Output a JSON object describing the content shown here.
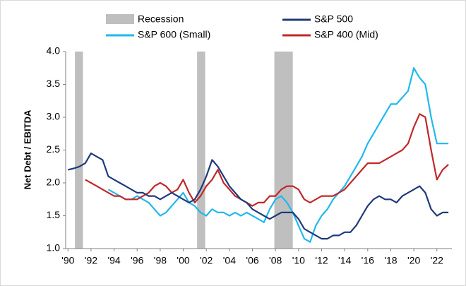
{
  "chart_data": {
    "type": "line",
    "y_label": "Net Debt / EBITDA",
    "recession": {
      "name": "Recession",
      "color": "#bfbfbf",
      "spans": [
        [
          1990.6,
          1991.3
        ],
        [
          2001.2,
          2001.9
        ],
        [
          2007.9,
          2009.5
        ]
      ]
    },
    "x": [
      1990,
      1990.5,
      1991,
      1991.5,
      1992,
      1992.5,
      1993,
      1993.5,
      1994,
      1994.5,
      1995,
      1995.5,
      1996,
      1996.5,
      1997,
      1997.5,
      1998,
      1998.5,
      1999,
      1999.5,
      2000,
      2000.5,
      2001,
      2001.5,
      2002,
      2002.5,
      2003,
      2003.5,
      2004,
      2004.5,
      2005,
      2005.5,
      2006,
      2006.5,
      2007,
      2007.5,
      2008,
      2008.5,
      2009,
      2009.5,
      2010,
      2010.5,
      2011,
      2011.5,
      2012,
      2012.5,
      2013,
      2013.5,
      2014,
      2014.5,
      2015,
      2015.5,
      2016,
      2016.5,
      2017,
      2017.5,
      2018,
      2018.5,
      2019,
      2019.5,
      2020,
      2020.5,
      2021,
      2021.5,
      2022,
      2022.5,
      2023
    ],
    "series": [
      {
        "name": "S&P 500",
        "color": "#1f3a7a",
        "values": [
          2.2,
          2.22,
          2.25,
          2.3,
          2.45,
          2.4,
          2.35,
          2.1,
          2.05,
          2.0,
          1.95,
          1.9,
          1.85,
          1.85,
          1.8,
          1.8,
          1.75,
          1.8,
          1.85,
          1.8,
          1.75,
          1.7,
          1.75,
          1.9,
          2.1,
          2.35,
          2.25,
          2.1,
          1.95,
          1.85,
          1.75,
          1.7,
          1.6,
          1.55,
          1.5,
          1.45,
          1.5,
          1.55,
          1.55,
          1.55,
          1.45,
          1.3,
          1.25,
          1.2,
          1.15,
          1.15,
          1.2,
          1.2,
          1.25,
          1.25,
          1.35,
          1.5,
          1.65,
          1.75,
          1.8,
          1.75,
          1.75,
          1.7,
          1.8,
          1.85,
          1.9,
          1.95,
          1.85,
          1.6,
          1.5,
          1.55,
          1.55
        ]
      },
      {
        "name": "S&P 600 (Small)",
        "color": "#22b8ec",
        "values": [
          null,
          null,
          null,
          null,
          null,
          null,
          null,
          1.9,
          1.85,
          1.8,
          1.75,
          1.75,
          1.8,
          1.75,
          1.7,
          1.6,
          1.5,
          1.55,
          1.65,
          1.75,
          1.85,
          1.7,
          1.65,
          1.55,
          1.5,
          1.6,
          1.55,
          1.55,
          1.5,
          1.55,
          1.5,
          1.55,
          1.5,
          1.45,
          1.4,
          1.6,
          1.75,
          1.8,
          1.7,
          1.55,
          1.35,
          1.15,
          1.1,
          1.35,
          1.5,
          1.6,
          1.75,
          1.85,
          1.95,
          2.1,
          2.25,
          2.4,
          2.6,
          2.75,
          2.9,
          3.05,
          3.2,
          3.2,
          3.3,
          3.4,
          3.75,
          3.6,
          3.5,
          3.0,
          2.6,
          2.6,
          2.6
        ]
      },
      {
        "name": "S&P 400 (Mid)",
        "color": "#c0282a",
        "values": [
          null,
          null,
          null,
          2.05,
          2.0,
          1.95,
          1.9,
          1.85,
          1.8,
          1.8,
          1.75,
          1.75,
          1.75,
          1.8,
          1.85,
          1.95,
          2.0,
          1.95,
          1.85,
          1.9,
          2.05,
          1.85,
          1.7,
          1.8,
          1.95,
          2.05,
          2.2,
          2.0,
          1.9,
          1.8,
          1.75,
          1.7,
          1.65,
          1.7,
          1.7,
          1.8,
          1.8,
          1.9,
          1.95,
          1.95,
          1.9,
          1.75,
          1.7,
          1.75,
          1.8,
          1.8,
          1.8,
          1.85,
          1.9,
          2.0,
          2.1,
          2.2,
          2.3,
          2.3,
          2.3,
          2.35,
          2.4,
          2.45,
          2.5,
          2.6,
          2.85,
          3.05,
          3.0,
          2.5,
          2.05,
          2.2,
          2.28
        ]
      }
    ],
    "xlim": [
      1989.8,
      2023.3
    ],
    "xticks": [
      {
        "value": 1990,
        "label": "'90"
      },
      {
        "value": 1992,
        "label": "'92"
      },
      {
        "value": 1994,
        "label": "'94"
      },
      {
        "value": 1996,
        "label": "'96"
      },
      {
        "value": 1998,
        "label": "'98"
      },
      {
        "value": 2000,
        "label": "'00"
      },
      {
        "value": 2002,
        "label": "'02"
      },
      {
        "value": 2004,
        "label": "'04"
      },
      {
        "value": 2006,
        "label": "'06"
      },
      {
        "value": 2008,
        "label": "'08"
      },
      {
        "value": 2010,
        "label": "'10"
      },
      {
        "value": 2012,
        "label": "'12"
      },
      {
        "value": 2014,
        "label": "'14"
      },
      {
        "value": 2016,
        "label": "'16"
      },
      {
        "value": 2018,
        "label": "'18"
      },
      {
        "value": 2020,
        "label": "'20"
      },
      {
        "value": 2022,
        "label": "'22"
      }
    ],
    "ylim": [
      1.0,
      4.0
    ],
    "yticks": [
      {
        "value": 1,
        "label": "1.0"
      },
      1.5,
      {
        "value": 2,
        "label": "2.0"
      },
      2.5,
      {
        "value": 3,
        "label": "3.0"
      },
      3.5,
      {
        "value": 4,
        "label": "4.0"
      }
    ],
    "grid": false
  }
}
